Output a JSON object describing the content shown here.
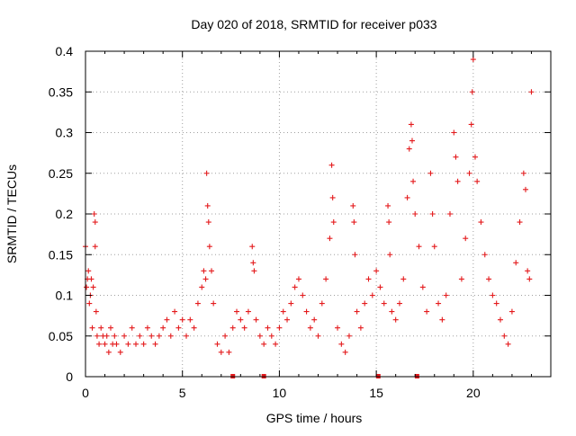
{
  "colors": {
    "marker": "#e41a1c",
    "axis": "#000000",
    "grid": "#a0a0a0",
    "background": "#ffffff"
  },
  "chart_data": {
    "type": "scatter",
    "marker": "plus",
    "title": "Day 020 of 2018, SRMTID for receiver p033",
    "xlabel": "GPS time / hours",
    "ylabel": "SRMTID / TECUs",
    "xlim": [
      0,
      24
    ],
    "ylim": [
      0,
      0.4
    ],
    "xticks": [
      0,
      5,
      10,
      15,
      20
    ],
    "yticks": [
      0,
      0.05,
      0.1,
      0.15,
      0.2,
      0.25,
      0.3,
      0.35,
      0.4
    ],
    "xtick_labels": [
      "0",
      "5",
      "10",
      "15",
      "20"
    ],
    "ytick_labels": [
      "0",
      "0.05",
      "0.1",
      "0.15",
      "0.2",
      "0.25",
      "0.3",
      "0.35",
      "0.4"
    ],
    "grid": true,
    "series": [
      {
        "name": "SRMTID",
        "points": [
          [
            0.0,
            0.16
          ],
          [
            0.05,
            0.11
          ],
          [
            0.1,
            0.12
          ],
          [
            0.15,
            0.13
          ],
          [
            0.2,
            0.09
          ],
          [
            0.25,
            0.1
          ],
          [
            0.3,
            0.12
          ],
          [
            0.35,
            0.06
          ],
          [
            0.4,
            0.11
          ],
          [
            0.45,
            0.2
          ],
          [
            0.5,
            0.19
          ],
          [
            0.5,
            0.16
          ],
          [
            0.55,
            0.08
          ],
          [
            0.6,
            0.05
          ],
          [
            0.7,
            0.04
          ],
          [
            0.8,
            0.06
          ],
          [
            0.9,
            0.05
          ],
          [
            1.0,
            0.04
          ],
          [
            1.1,
            0.05
          ],
          [
            1.2,
            0.03
          ],
          [
            1.3,
            0.06
          ],
          [
            1.4,
            0.04
          ],
          [
            1.5,
            0.05
          ],
          [
            1.6,
            0.04
          ],
          [
            1.8,
            0.03
          ],
          [
            2.0,
            0.05
          ],
          [
            2.2,
            0.04
          ],
          [
            2.4,
            0.06
          ],
          [
            2.6,
            0.04
          ],
          [
            2.8,
            0.05
          ],
          [
            3.0,
            0.04
          ],
          [
            3.2,
            0.06
          ],
          [
            3.4,
            0.05
          ],
          [
            3.6,
            0.04
          ],
          [
            3.8,
            0.05
          ],
          [
            4.0,
            0.06
          ],
          [
            4.2,
            0.07
          ],
          [
            4.4,
            0.05
          ],
          [
            4.6,
            0.08
          ],
          [
            4.8,
            0.06
          ],
          [
            5.0,
            0.07
          ],
          [
            5.2,
            0.05
          ],
          [
            5.4,
            0.07
          ],
          [
            5.6,
            0.06
          ],
          [
            5.8,
            0.09
          ],
          [
            6.0,
            0.11
          ],
          [
            6.1,
            0.13
          ],
          [
            6.2,
            0.12
          ],
          [
            6.25,
            0.25
          ],
          [
            6.3,
            0.21
          ],
          [
            6.35,
            0.19
          ],
          [
            6.4,
            0.16
          ],
          [
            6.5,
            0.13
          ],
          [
            6.6,
            0.09
          ],
          [
            6.8,
            0.04
          ],
          [
            7.0,
            0.03
          ],
          [
            7.2,
            0.05
          ],
          [
            7.4,
            0.03
          ],
          [
            7.6,
            0.06
          ],
          [
            7.8,
            0.08
          ],
          [
            8.0,
            0.07
          ],
          [
            8.2,
            0.06
          ],
          [
            8.4,
            0.08
          ],
          [
            8.6,
            0.16
          ],
          [
            8.65,
            0.14
          ],
          [
            8.7,
            0.13
          ],
          [
            8.8,
            0.07
          ],
          [
            9.0,
            0.05
          ],
          [
            9.2,
            0.04
          ],
          [
            9.4,
            0.06
          ],
          [
            9.6,
            0.05
          ],
          [
            9.8,
            0.04
          ],
          [
            10.0,
            0.06
          ],
          [
            10.2,
            0.08
          ],
          [
            10.4,
            0.07
          ],
          [
            10.6,
            0.09
          ],
          [
            10.8,
            0.11
          ],
          [
            11.0,
            0.12
          ],
          [
            11.2,
            0.1
          ],
          [
            11.4,
            0.08
          ],
          [
            11.6,
            0.06
          ],
          [
            11.8,
            0.07
          ],
          [
            12.0,
            0.05
          ],
          [
            12.2,
            0.09
          ],
          [
            12.4,
            0.12
          ],
          [
            12.6,
            0.17
          ],
          [
            12.7,
            0.26
          ],
          [
            12.75,
            0.22
          ],
          [
            12.8,
            0.19
          ],
          [
            13.0,
            0.06
          ],
          [
            13.2,
            0.04
          ],
          [
            13.4,
            0.03
          ],
          [
            13.6,
            0.05
          ],
          [
            13.8,
            0.21
          ],
          [
            13.85,
            0.19
          ],
          [
            13.9,
            0.15
          ],
          [
            14.0,
            0.08
          ],
          [
            14.2,
            0.06
          ],
          [
            14.4,
            0.09
          ],
          [
            14.6,
            0.12
          ],
          [
            14.8,
            0.1
          ],
          [
            15.0,
            0.13
          ],
          [
            15.2,
            0.11
          ],
          [
            15.4,
            0.09
          ],
          [
            15.6,
            0.21
          ],
          [
            15.65,
            0.19
          ],
          [
            15.7,
            0.15
          ],
          [
            15.8,
            0.08
          ],
          [
            16.0,
            0.07
          ],
          [
            16.2,
            0.09
          ],
          [
            16.4,
            0.12
          ],
          [
            16.6,
            0.22
          ],
          [
            16.7,
            0.28
          ],
          [
            16.8,
            0.31
          ],
          [
            16.85,
            0.29
          ],
          [
            16.9,
            0.24
          ],
          [
            17.0,
            0.2
          ],
          [
            17.2,
            0.16
          ],
          [
            17.4,
            0.11
          ],
          [
            17.6,
            0.08
          ],
          [
            17.8,
            0.25
          ],
          [
            17.9,
            0.2
          ],
          [
            18.0,
            0.16
          ],
          [
            18.2,
            0.09
          ],
          [
            18.4,
            0.07
          ],
          [
            18.6,
            0.1
          ],
          [
            18.8,
            0.2
          ],
          [
            19.0,
            0.3
          ],
          [
            19.1,
            0.27
          ],
          [
            19.2,
            0.24
          ],
          [
            19.4,
            0.12
          ],
          [
            19.6,
            0.17
          ],
          [
            19.8,
            0.25
          ],
          [
            19.9,
            0.31
          ],
          [
            19.95,
            0.35
          ],
          [
            20.0,
            0.39
          ],
          [
            20.1,
            0.27
          ],
          [
            20.2,
            0.24
          ],
          [
            20.4,
            0.19
          ],
          [
            20.6,
            0.15
          ],
          [
            20.8,
            0.12
          ],
          [
            21.0,
            0.1
          ],
          [
            21.2,
            0.09
          ],
          [
            21.4,
            0.07
          ],
          [
            21.6,
            0.05
          ],
          [
            21.8,
            0.04
          ],
          [
            22.0,
            0.08
          ],
          [
            22.2,
            0.14
          ],
          [
            22.4,
            0.19
          ],
          [
            22.6,
            0.25
          ],
          [
            22.7,
            0.23
          ],
          [
            22.8,
            0.13
          ],
          [
            22.9,
            0.12
          ],
          [
            23.0,
            0.35
          ]
        ]
      }
    ],
    "baseline_markers_x": [
      7.6,
      9.2,
      15.1,
      17.1
    ]
  }
}
